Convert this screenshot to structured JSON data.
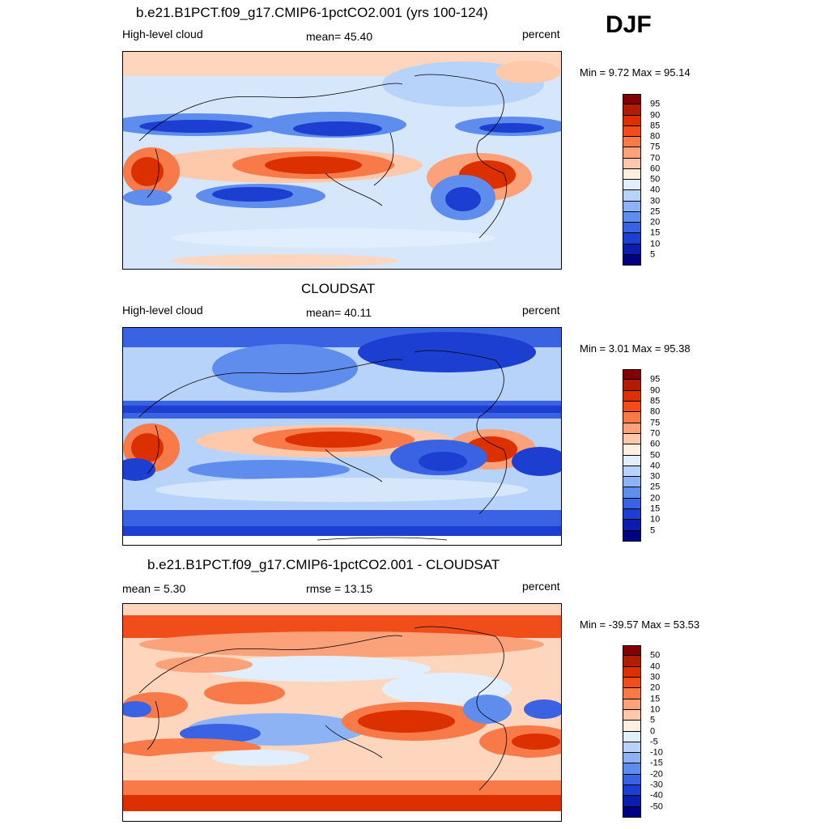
{
  "season": "DJF",
  "panels": [
    {
      "id": "model",
      "title": "b.e21.B1PCT.f09_g17.CMIP6-1pctCO2.001 (yrs 100-124)",
      "left_label": "High-level cloud",
      "center_label": "mean=  45.40",
      "right_label": "percent",
      "minmax": "Min =   9.72 Max =  95.14",
      "colorbar": "abs"
    },
    {
      "id": "obs",
      "title": "CLOUDSAT",
      "left_label": "High-level cloud",
      "center_label": "mean=  40.11",
      "right_label": "percent",
      "minmax": "Min =   3.01 Max =  95.38",
      "colorbar": "abs"
    },
    {
      "id": "diff",
      "title": "b.e21.B1PCT.f09_g17.CMIP6-1pctCO2.001 - CLOUDSAT",
      "left_label": "mean =   5.30",
      "center_label": "rmse =  13.15",
      "right_label": "percent",
      "minmax": "Min = -39.57 Max =  53.53",
      "colorbar": "diff"
    }
  ],
  "colorbars": {
    "abs": {
      "labels": [
        "95",
        "90",
        "85",
        "80",
        "75",
        "70",
        "60",
        "50",
        "40",
        "30",
        "25",
        "20",
        "15",
        "10",
        "5"
      ],
      "colors": [
        "#800000",
        "#b01c00",
        "#dc3000",
        "#f04d1a",
        "#f77a48",
        "#fba27a",
        "#fdc9aa",
        "#fff0e0",
        "#e1eefe",
        "#b8d3fa",
        "#8db3f5",
        "#5e8ded",
        "#3a63e4",
        "#1c3fd1",
        "#0a1eab",
        "#000080"
      ]
    },
    "diff": {
      "labels": [
        "50",
        "40",
        "30",
        "20",
        "15",
        "10",
        "5",
        "0",
        "-5",
        "-10",
        "-15",
        "-20",
        "-30",
        "-40",
        "-50"
      ],
      "colors": [
        "#800000",
        "#b01c00",
        "#dc3000",
        "#f04d1a",
        "#f77a48",
        "#fba27a",
        "#fdc9aa",
        "#fff0e0",
        "#e1eefe",
        "#b8d3fa",
        "#8db3f5",
        "#5e8ded",
        "#3a63e4",
        "#1c3fd1",
        "#0a1eab",
        "#000080"
      ]
    }
  }
}
